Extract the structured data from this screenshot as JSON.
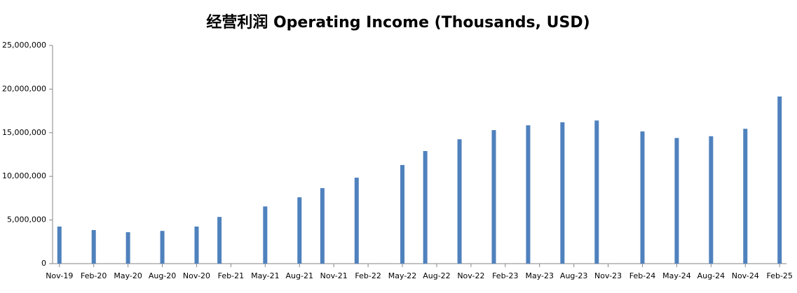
{
  "chart_data": {
    "type": "bar",
    "title": "经营利润 Operating Income (Thousands, USD)",
    "x": [
      "2019-11",
      "2020-02",
      "2020-05",
      "2020-08",
      "2020-11",
      "2021-01",
      "2021-05",
      "2021-08",
      "2021-10",
      "2022-01",
      "2022-05",
      "2022-07",
      "2022-10",
      "2023-01",
      "2023-04",
      "2023-07",
      "2023-10",
      "2024-02",
      "2024-05",
      "2024-08",
      "2024-11",
      "2025-02"
    ],
    "values": [
      4250000,
      3850000,
      3600000,
      3750000,
      4250000,
      5350000,
      6550000,
      7600000,
      8650000,
      9850000,
      11300000,
      12900000,
      14250000,
      15300000,
      15850000,
      16200000,
      16400000,
      15150000,
      14400000,
      14600000,
      15450000,
      19150000
    ],
    "color": "#4f81bd",
    "xticks": [
      {
        "value": "2019-11",
        "label": "Nov-19"
      },
      {
        "value": "2020-02",
        "label": "Feb-20"
      },
      {
        "value": "2020-05",
        "label": "May-20"
      },
      {
        "value": "2020-08",
        "label": "Aug-20"
      },
      {
        "value": "2020-11",
        "label": "Nov-20"
      },
      {
        "value": "2021-02",
        "label": "Feb-21"
      },
      {
        "value": "2021-05",
        "label": "May-21"
      },
      {
        "value": "2021-08",
        "label": "Aug-21"
      },
      {
        "value": "2021-11",
        "label": "Nov-21"
      },
      {
        "value": "2022-02",
        "label": "Feb-22"
      },
      {
        "value": "2022-05",
        "label": "May-22"
      },
      {
        "value": "2022-08",
        "label": "Aug-22"
      },
      {
        "value": "2022-11",
        "label": "Nov-22"
      },
      {
        "value": "2023-02",
        "label": "Feb-23"
      },
      {
        "value": "2023-05",
        "label": "May-23"
      },
      {
        "value": "2023-08",
        "label": "Aug-23"
      },
      {
        "value": "2023-11",
        "label": "Nov-23"
      },
      {
        "value": "2024-02",
        "label": "Feb-24"
      },
      {
        "value": "2024-05",
        "label": "May-24"
      },
      {
        "value": "2024-08",
        "label": "Aug-24"
      },
      {
        "value": "2024-11",
        "label": "Nov-24"
      },
      {
        "value": "2025-02",
        "label": "Feb-25"
      }
    ],
    "ylim": [
      0,
      25000000
    ],
    "yticks": [
      {
        "value": 0,
        "label": "0"
      },
      {
        "value": 5000000,
        "label": "5,000,000"
      },
      {
        "value": 10000000,
        "label": "10,000,000"
      },
      {
        "value": 15000000,
        "label": "15,000,000"
      },
      {
        "value": 20000000,
        "label": "20,000,000"
      },
      {
        "value": 25000000,
        "label": "25,000,000"
      }
    ],
    "grid": false
  }
}
